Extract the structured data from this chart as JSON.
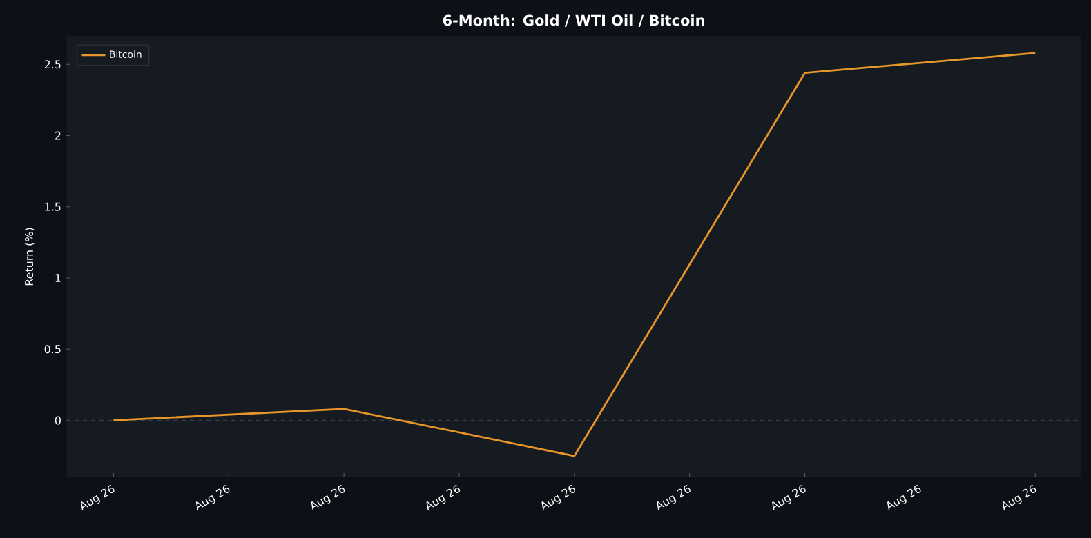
{
  "chart_data": {
    "type": "line",
    "title": "6-Month: Gold / WTI Oil / Bitcoin",
    "ylabel": "Return (%)",
    "categories": [
      "Aug 26",
      "Aug 26",
      "Aug 26",
      "Aug 26",
      "Aug 26",
      "Aug 26",
      "Aug 26",
      "Aug 26",
      "Aug 26"
    ],
    "series": [
      {
        "name": "Bitcoin",
        "color": "#e8952a",
        "values": [
          0,
          null,
          0.08,
          null,
          -0.25,
          null,
          2.44,
          null,
          2.58
        ]
      }
    ],
    "ylim": [
      -0.4,
      2.7
    ],
    "yticks": [
      0,
      0.5,
      1,
      1.5,
      2,
      2.5
    ],
    "ref_lines": [
      {
        "axis": "y",
        "value": 0,
        "color": "#3a3f47",
        "line_style": "dashed"
      }
    ],
    "legend": "top left",
    "marker": "none",
    "line_style": "solid",
    "grid": false
  }
}
